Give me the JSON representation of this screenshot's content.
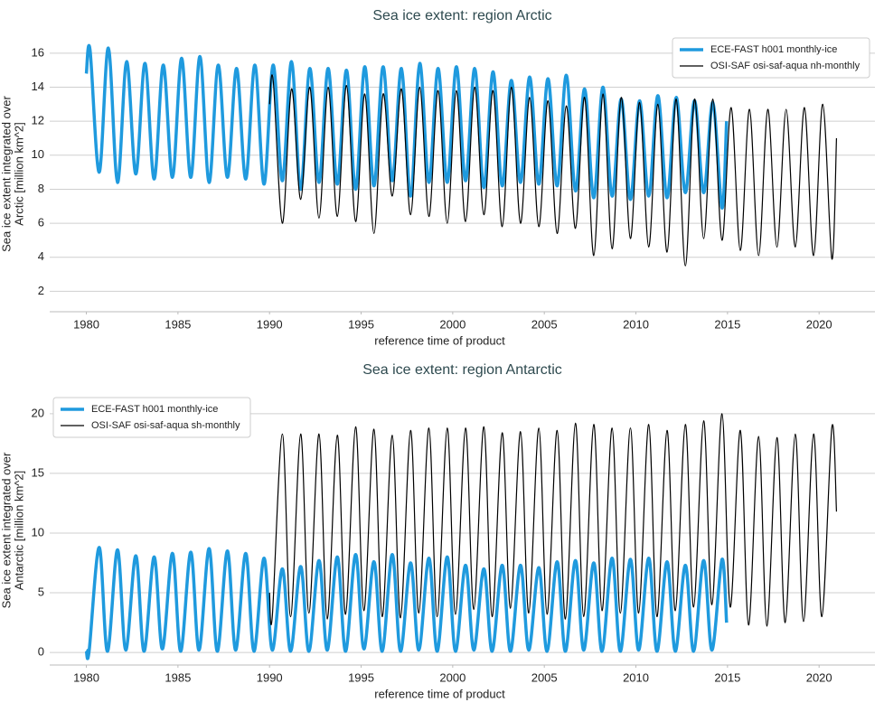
{
  "chart_data": [
    {
      "type": "line",
      "title": "Sea ice extent: region Arctic",
      "xlabel": "reference time of product",
      "ylabel": [
        "Sea ice extent integrated over",
        "Arctic [million km^2]"
      ],
      "xlim": [
        1978,
        2023.05
      ],
      "xticks": [
        1980,
        1985,
        1990,
        1995,
        2000,
        2005,
        2010,
        2015,
        2020
      ],
      "ylim": [
        0.8,
        17.0
      ],
      "yticks": [
        2,
        4,
        6,
        8,
        10,
        12,
        14,
        16
      ],
      "grid": true,
      "legend": "upper right",
      "series": [
        {
          "name": "ECE-FAST h001 monthly-ice",
          "color": "#1f9ade",
          "x": [
            1980,
            1980.2,
            1980.7,
            1981.2,
            1981.7,
            1982.2,
            1982.7,
            1983.2,
            1983.7,
            1984.2,
            1984.7,
            1985.2,
            1985.7,
            1986.2,
            1986.7,
            1987.2,
            1987.7,
            1988.2,
            1988.7,
            1989.2,
            1989.7,
            1990.2,
            1990.7,
            1991.2,
            1991.7,
            1992.2,
            1992.7,
            1993.2,
            1993.7,
            1994.2,
            1994.7,
            1995.2,
            1995.7,
            1996.2,
            1996.7,
            1997.2,
            1997.7,
            1998.2,
            1998.7,
            1999.2,
            1999.7,
            2000.2,
            2000.7,
            2001.2,
            2001.7,
            2002.2,
            2002.7,
            2003.2,
            2003.7,
            2004.2,
            2004.7,
            2005.2,
            2005.7,
            2006.2,
            2006.7,
            2007.2,
            2007.7,
            2008.2,
            2008.7,
            2009.2,
            2009.7,
            2010.2,
            2010.7,
            2011.2,
            2011.7,
            2012.2,
            2012.7,
            2013.2,
            2013.7,
            2014.2,
            2014.7,
            2014.95
          ],
          "values": [
            14.8,
            16.2,
            9.0,
            16.3,
            8.4,
            15.5,
            8.9,
            15.4,
            8.6,
            15.3,
            8.7,
            15.7,
            8.7,
            15.8,
            8.4,
            15.3,
            8.7,
            15.1,
            8.6,
            15.3,
            8.3,
            15.3,
            8.5,
            15.5,
            8.0,
            15.1,
            8.4,
            15.1,
            8.3,
            15.0,
            8.0,
            15.2,
            8.2,
            15.2,
            8.5,
            15.1,
            7.6,
            15.4,
            8.4,
            15.1,
            8.4,
            15.2,
            8.5,
            15.1,
            8.1,
            14.9,
            8.2,
            14.4,
            8.4,
            14.6,
            8.3,
            14.5,
            8.2,
            14.7,
            7.9,
            13.9,
            7.5,
            14.0,
            7.6,
            13.3,
            7.4,
            13.2,
            7.6,
            13.5,
            7.5,
            13.4,
            7.8,
            13.2,
            7.8,
            13.1,
            6.9,
            12.0
          ]
        },
        {
          "name": "OSI-SAF osi-saf-aqua nh-monthly",
          "color": "#000000",
          "x": [
            1990,
            1990.2,
            1990.7,
            1991.2,
            1991.7,
            1992.2,
            1992.7,
            1993.2,
            1993.7,
            1994.2,
            1994.7,
            1995.2,
            1995.7,
            1996.2,
            1996.7,
            1997.2,
            1997.7,
            1998.2,
            1998.7,
            1999.2,
            1999.7,
            2000.2,
            2000.7,
            2001.2,
            2001.7,
            2002.2,
            2002.7,
            2003.2,
            2003.7,
            2004.2,
            2004.7,
            2005.2,
            2005.7,
            2006.2,
            2006.7,
            2007.2,
            2007.7,
            2008.2,
            2008.7,
            2009.2,
            2009.7,
            2010.2,
            2010.7,
            2011.2,
            2011.7,
            2012.2,
            2012.7,
            2013.2,
            2013.7,
            2014.2,
            2014.7,
            2015.2,
            2015.7,
            2016.2,
            2016.7,
            2017.2,
            2017.7,
            2018.2,
            2018.7,
            2019.2,
            2019.7,
            2020.2,
            2020.7,
            2020.95
          ],
          "values": [
            13.0,
            14.4,
            6.0,
            13.9,
            7.4,
            14.0,
            6.3,
            14.0,
            6.4,
            14.1,
            6.1,
            13.6,
            5.4,
            13.6,
            7.6,
            13.9,
            6.5,
            14.0,
            6.4,
            13.8,
            6.0,
            13.8,
            6.1,
            14.0,
            6.5,
            13.8,
            5.8,
            14.0,
            6.0,
            13.4,
            5.8,
            13.2,
            5.4,
            12.9,
            5.7,
            13.4,
            4.1,
            13.6,
            4.5,
            13.4,
            5.1,
            13.1,
            4.6,
            13.0,
            4.3,
            13.3,
            3.5,
            13.3,
            5.1,
            13.3,
            5.0,
            12.8,
            4.4,
            12.7,
            4.1,
            12.7,
            4.6,
            12.7,
            4.6,
            12.8,
            4.1,
            13.0,
            3.9,
            11.0
          ]
        }
      ]
    },
    {
      "type": "line",
      "title": "Sea ice extent: region Antarctic",
      "xlabel": "reference time of product",
      "ylabel": [
        "Sea ice extent integrated over",
        "Antarctic [million km^2]"
      ],
      "xlim": [
        1978,
        2023.05
      ],
      "xticks": [
        1980,
        1985,
        1990,
        1995,
        2000,
        2005,
        2010,
        2015,
        2020
      ],
      "ylim": [
        -1.05,
        21.5
      ],
      "yticks": [
        0,
        5,
        10,
        15,
        20
      ],
      "grid": true,
      "legend": "upper left",
      "series": [
        {
          "name": "ECE-FAST h001 monthly-ice",
          "color": "#1f9ade",
          "x": [
            1980,
            1980.15,
            1980.7,
            1981.15,
            1981.7,
            1982.15,
            1982.7,
            1983.15,
            1983.7,
            1984.15,
            1984.7,
            1985.15,
            1985.7,
            1986.15,
            1986.7,
            1987.15,
            1987.7,
            1988.15,
            1988.7,
            1989.15,
            1989.7,
            1990.15,
            1990.7,
            1991.15,
            1991.7,
            1992.15,
            1992.7,
            1993.15,
            1993.7,
            1994.15,
            1994.7,
            1995.15,
            1995.7,
            1996.15,
            1996.7,
            1997.15,
            1997.7,
            1998.15,
            1998.7,
            1999.15,
            1999.7,
            2000.15,
            2000.7,
            2001.15,
            2001.7,
            2002.15,
            2002.7,
            2003.15,
            2003.7,
            2004.15,
            2004.7,
            2005.15,
            2005.7,
            2006.15,
            2006.7,
            2007.15,
            2007.7,
            2008.15,
            2008.7,
            2009.15,
            2009.7,
            2010.15,
            2010.7,
            2011.15,
            2011.7,
            2012.15,
            2012.7,
            2013.15,
            2013.7,
            2014.15,
            2014.7,
            2014.95
          ],
          "values": [
            0.2,
            0.1,
            8.8,
            0.1,
            8.6,
            0.2,
            8.1,
            0.1,
            8.0,
            0.3,
            8.3,
            0.1,
            8.4,
            0.2,
            8.7,
            0.1,
            8.5,
            0.2,
            8.3,
            0.1,
            7.9,
            0.2,
            7.0,
            0.1,
            7.2,
            0.1,
            7.7,
            0.2,
            8.0,
            0.1,
            8.2,
            0.3,
            7.6,
            0.1,
            8.2,
            0.1,
            7.5,
            0.2,
            7.9,
            0.1,
            8.0,
            0.1,
            7.3,
            0.2,
            7.0,
            0.1,
            7.3,
            0.1,
            7.3,
            0.2,
            7.1,
            0.1,
            7.6,
            0.1,
            7.7,
            0.2,
            7.5,
            0.1,
            7.9,
            0.1,
            7.8,
            0.2,
            7.9,
            0.1,
            7.6,
            0.1,
            7.3,
            0.1,
            7.7,
            0.2,
            7.8,
            2.5
          ]
        },
        {
          "name": "OSI-SAF osi-saf-aqua sh-monthly",
          "color": "#000000",
          "x": [
            1990,
            1990.15,
            1990.7,
            1991.15,
            1991.7,
            1992.15,
            1992.7,
            1993.15,
            1993.7,
            1994.15,
            1994.7,
            1995.15,
            1995.7,
            1996.15,
            1996.7,
            1997.15,
            1997.7,
            1998.15,
            1998.7,
            1999.15,
            1999.7,
            2000.15,
            2000.7,
            2001.15,
            2001.7,
            2002.15,
            2002.7,
            2003.15,
            2003.7,
            2004.15,
            2004.7,
            2005.15,
            2005.7,
            2006.15,
            2006.7,
            2007.15,
            2007.7,
            2008.15,
            2008.7,
            2009.15,
            2009.7,
            2010.15,
            2010.7,
            2011.15,
            2011.7,
            2012.15,
            2012.7,
            2013.15,
            2013.7,
            2014.15,
            2014.7,
            2015.15,
            2015.7,
            2016.15,
            2016.7,
            2017.15,
            2017.7,
            2018.15,
            2018.7,
            2019.15,
            2019.7,
            2020.15,
            2020.7,
            2020.95
          ],
          "values": [
            5.0,
            3.0,
            18.3,
            3.0,
            18.3,
            3.3,
            18.3,
            2.8,
            18.2,
            3.2,
            18.9,
            3.5,
            18.7,
            3.0,
            18.2,
            2.9,
            18.6,
            3.3,
            18.8,
            3.0,
            18.8,
            3.2,
            18.8,
            3.6,
            18.9,
            3.0,
            18.4,
            3.7,
            18.5,
            3.3,
            18.8,
            3.2,
            18.6,
            2.8,
            19.2,
            3.0,
            19.1,
            3.5,
            18.8,
            3.3,
            18.8,
            3.3,
            19.1,
            3.0,
            18.6,
            3.5,
            19.1,
            3.8,
            19.4,
            4.0,
            20.0,
            3.8,
            18.6,
            2.3,
            18.1,
            2.2,
            18.0,
            2.5,
            18.3,
            2.6,
            18.3,
            3.0,
            18.9,
            11.8
          ]
        }
      ]
    }
  ]
}
